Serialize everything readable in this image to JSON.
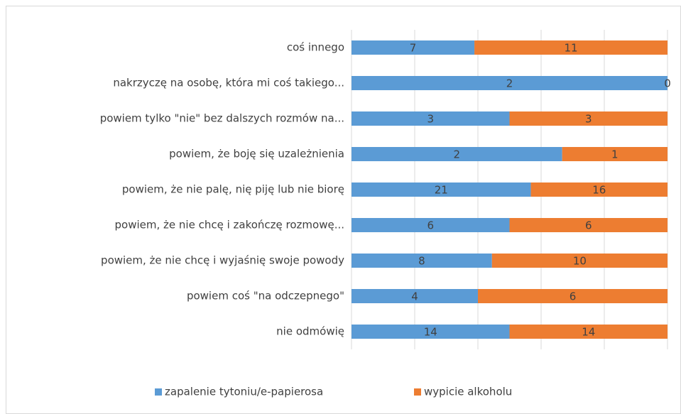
{
  "chart_data": {
    "type": "bar",
    "orientation": "horizontal",
    "stacking": "percent",
    "categories": [
      "coś innego",
      "nakrzyczę na osobę, która mi coś takiego...",
      "powiem tylko \"nie\" bez dalszych rozmów na...",
      "powiem, że boję się uzależnienia",
      "powiem, że nie palę, nię piję lub nie biorę",
      "powiem, że nie chcę i zakończę rozmowę...",
      "powiem, że nie chcę i wyjaśnię swoje powody",
      "powiem coś \"na odczepnego\"",
      "nie odmówię"
    ],
    "series": [
      {
        "name": "zapalenie tytoniu/e-papierosa",
        "color": "#5b9bd5",
        "values": [
          7,
          2,
          3,
          2,
          21,
          6,
          8,
          4,
          14
        ]
      },
      {
        "name": "wypicie alkoholu",
        "color": "#ed7d31",
        "values": [
          11,
          0,
          3,
          1,
          16,
          6,
          10,
          6,
          14
        ]
      }
    ],
    "xlim": [
      0,
      100
    ],
    "xticks": [
      0,
      20,
      40,
      60,
      80,
      100
    ],
    "grid": true,
    "legend": "bottom"
  }
}
